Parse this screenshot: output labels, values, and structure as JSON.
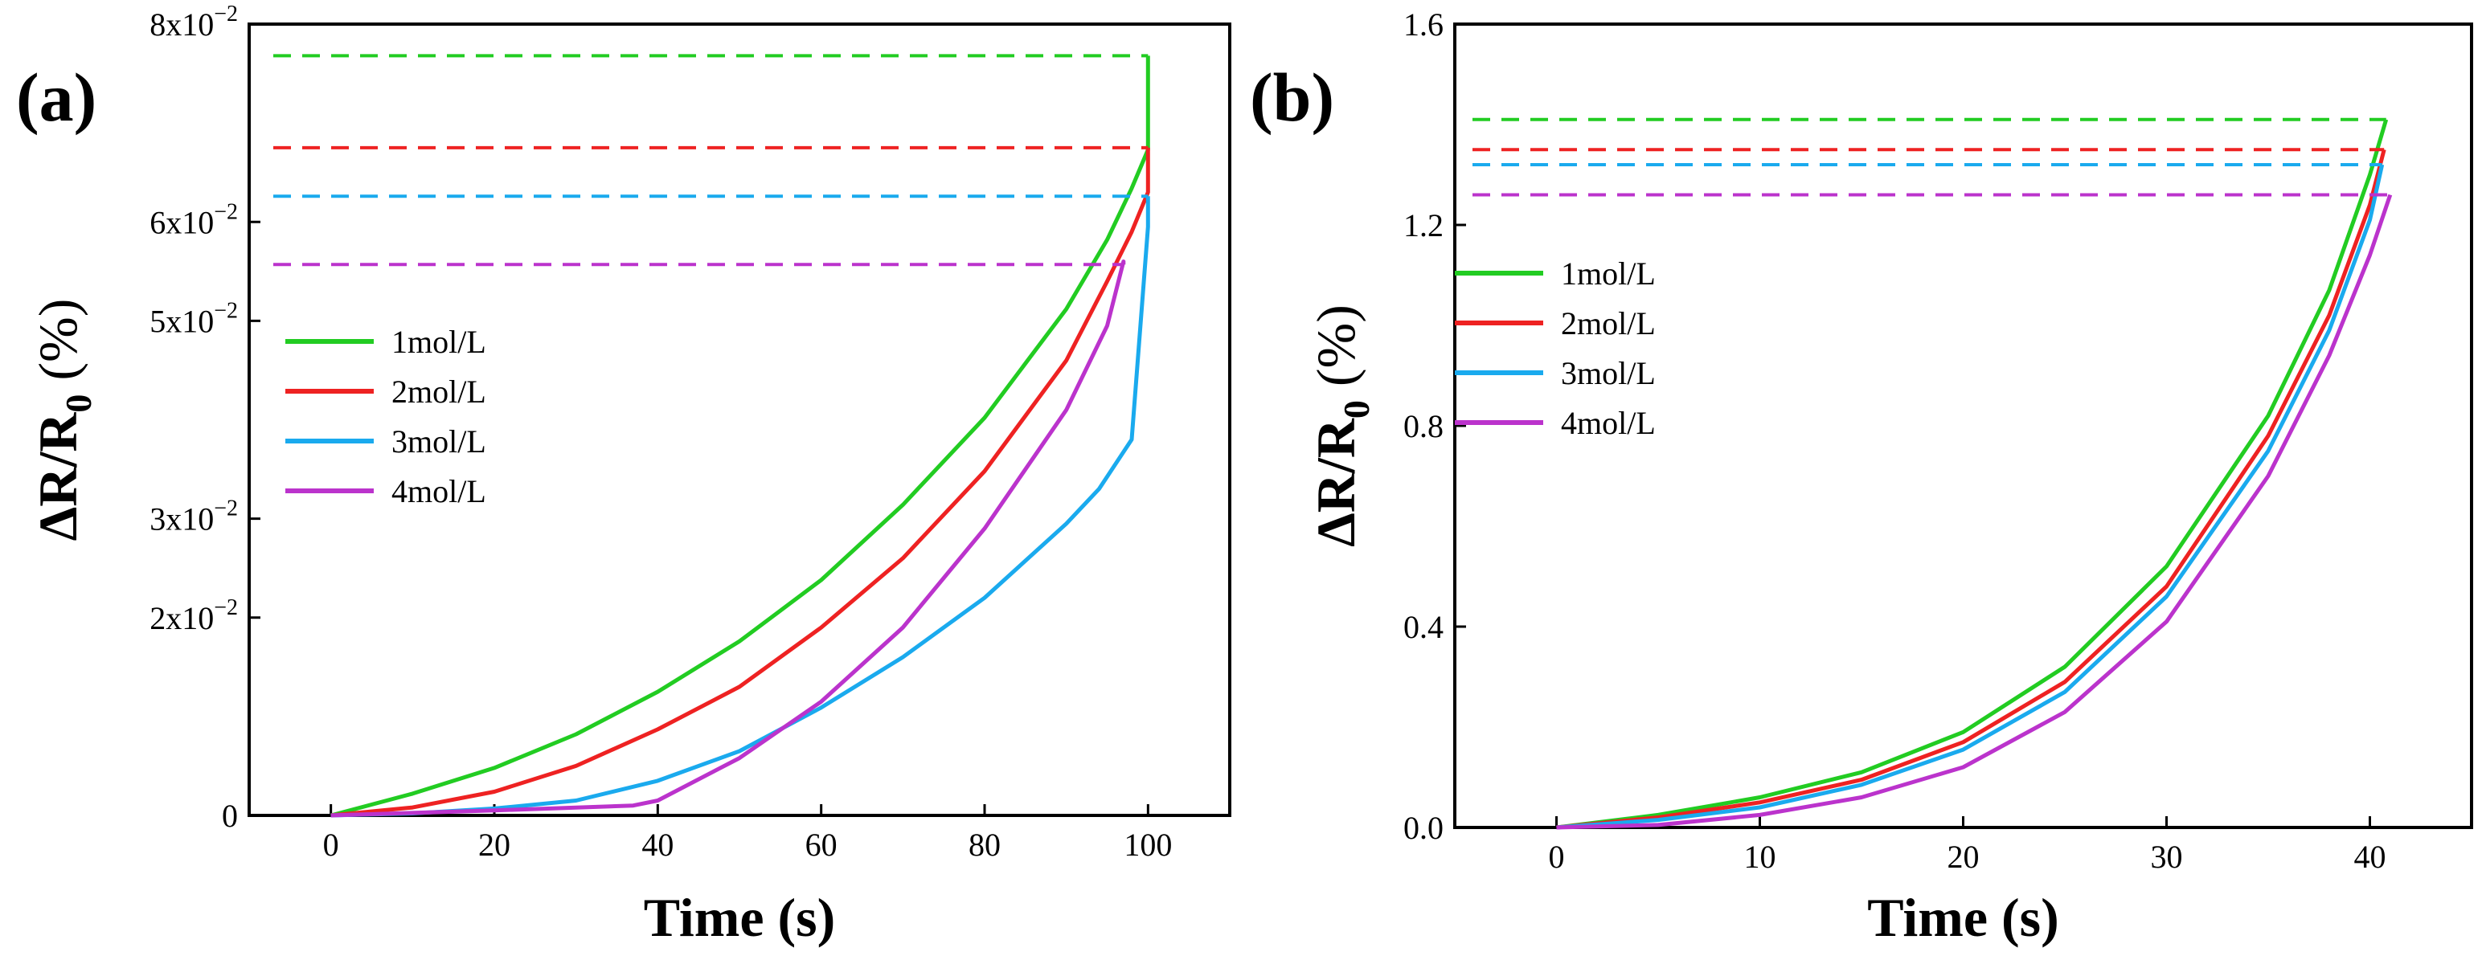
{
  "chart_data": [
    {
      "type": "line",
      "panel_label": "(a)",
      "xlabel": "Time (s)",
      "ylabel_parts": [
        "ΔR/R",
        "0",
        " (%)"
      ],
      "xlim": [
        -10,
        110
      ],
      "ylim": [
        0,
        0.08
      ],
      "xticks": [
        0,
        20,
        40,
        60,
        80,
        100
      ],
      "yticks": [
        0,
        0.02,
        0.03,
        0.05,
        0.06,
        0.08
      ],
      "ytick_labels": [
        {
          "value": 0,
          "base": "0",
          "exp": ""
        },
        {
          "value": 0.02,
          "base": "2x10",
          "exp": "−2"
        },
        {
          "value": 0.03,
          "base": "3x10",
          "exp": "−2"
        },
        {
          "value": 0.05,
          "base": "5x10",
          "exp": "−2"
        },
        {
          "value": 0.06,
          "base": "6x10",
          "exp": "−2"
        },
        {
          "value": 0.08,
          "base": "8x10",
          "exp": "−2"
        }
      ],
      "legend_position": "middle-left",
      "series": [
        {
          "name": "1mol/L",
          "color": "#22cc22",
          "x": [
            0,
            10,
            20,
            30,
            40,
            50,
            60,
            70,
            80,
            90,
            95,
            98,
            100
          ],
          "y": [
            0,
            0.0022,
            0.0048,
            0.0082,
            0.0125,
            0.0176,
            0.0238,
            0.0314,
            0.0402,
            0.0512,
            0.0582,
            0.0634,
            0.0673
          ],
          "plateau": 0.0768
        },
        {
          "name": "2mol/L",
          "color": "#ee2222",
          "x": [
            0,
            10,
            20,
            30,
            40,
            50,
            60,
            70,
            80,
            90,
            95,
            98,
            100
          ],
          "y": [
            0,
            0.0008,
            0.0024,
            0.005,
            0.0087,
            0.013,
            0.019,
            0.026,
            0.0348,
            0.046,
            0.054,
            0.059,
            0.063
          ],
          "plateau": 0.0675
        },
        {
          "name": "3mol/L",
          "color": "#1aaaee",
          "x": [
            0,
            10,
            20,
            30,
            40,
            50,
            60,
            70,
            80,
            90,
            94,
            98,
            100
          ],
          "y": [
            0,
            0.0002,
            0.0007,
            0.0015,
            0.0035,
            0.0065,
            0.0109,
            0.016,
            0.022,
            0.0295,
            0.033,
            0.038,
            0.0595
          ],
          "plateau": 0.0626
        },
        {
          "name": "4mol/L",
          "color": "#bb33cc",
          "x": [
            0,
            20,
            37,
            40,
            50,
            60,
            70,
            80,
            90,
            95,
            97
          ],
          "y": [
            0,
            0.0005,
            0.001,
            0.0015,
            0.0058,
            0.0115,
            0.019,
            0.029,
            0.041,
            0.0495,
            0.056
          ],
          "plateau": 0.0557
        }
      ]
    },
    {
      "type": "line",
      "panel_label": "(b)",
      "xlabel": "Time (s)",
      "ylabel_parts": [
        "ΔR/R",
        "0",
        " (%)"
      ],
      "xlim": [
        -5,
        45
      ],
      "ylim": [
        0,
        1.6
      ],
      "xticks": [
        0,
        10,
        20,
        30,
        40
      ],
      "yticks": [
        0,
        0.4,
        0.8,
        1.2,
        1.6
      ],
      "ytick_labels": [
        {
          "value": 0,
          "base": "0.0",
          "exp": ""
        },
        {
          "value": 0.4,
          "base": "0.4",
          "exp": ""
        },
        {
          "value": 0.8,
          "base": "0.8",
          "exp": ""
        },
        {
          "value": 1.2,
          "base": "1.2",
          "exp": ""
        },
        {
          "value": 1.6,
          "base": "1.6",
          "exp": ""
        }
      ],
      "legend_position": "upper-left",
      "series": [
        {
          "name": "1mol/L",
          "color": "#22cc22",
          "x": [
            0,
            5,
            10,
            15,
            20,
            25,
            30,
            35,
            38,
            40,
            40.8
          ],
          "y": [
            0,
            0.025,
            0.06,
            0.11,
            0.19,
            0.32,
            0.52,
            0.82,
            1.07,
            1.3,
            1.41
          ],
          "plateau": 1.41
        },
        {
          "name": "2mol/L",
          "color": "#ee2222",
          "x": [
            0,
            5,
            10,
            15,
            20,
            25,
            30,
            35,
            38,
            40,
            40.7
          ],
          "y": [
            0,
            0.02,
            0.05,
            0.095,
            0.17,
            0.29,
            0.48,
            0.78,
            1.02,
            1.24,
            1.35
          ],
          "plateau": 1.35
        },
        {
          "name": "3mol/L",
          "color": "#1aaaee",
          "x": [
            0,
            5,
            10,
            15,
            20,
            25,
            30,
            35,
            38,
            40,
            40.6
          ],
          "y": [
            0,
            0.015,
            0.04,
            0.085,
            0.155,
            0.27,
            0.46,
            0.75,
            0.99,
            1.21,
            1.32
          ],
          "plateau": 1.32
        },
        {
          "name": "4mol/L",
          "color": "#bb33cc",
          "x": [
            0,
            5,
            10,
            15,
            20,
            25,
            30,
            35,
            38,
            40,
            41
          ],
          "y": [
            0,
            0.005,
            0.025,
            0.06,
            0.12,
            0.23,
            0.41,
            0.7,
            0.94,
            1.14,
            1.26
          ],
          "plateau": 1.26
        }
      ]
    }
  ]
}
